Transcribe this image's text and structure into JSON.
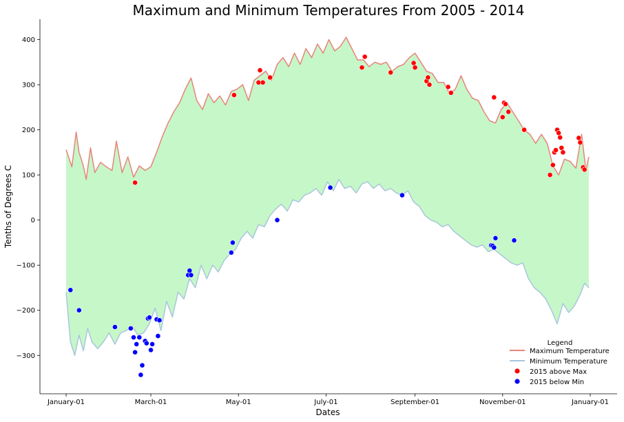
{
  "chart_data": {
    "type": "line",
    "title": "Maximum and Minimum Temperatures From 2005 - 2014",
    "xlabel": "Dates",
    "ylabel": "Tenths of Degrees C",
    "x_range": [
      "2015-01-01",
      "2016-01-01"
    ],
    "ylim": [
      -385,
      445
    ],
    "x_ticks": [
      {
        "date": "2015-01-01",
        "label": "January-01"
      },
      {
        "date": "2015-03-01",
        "label": "March-01"
      },
      {
        "date": "2015-05-01",
        "label": "May-01"
      },
      {
        "date": "2015-07-01",
        "label": "July-01"
      },
      {
        "date": "2015-09-01",
        "label": "September-01"
      },
      {
        "date": "2015-11-01",
        "label": "November-01"
      },
      {
        "date": "2016-01-01",
        "label": "January-01"
      }
    ],
    "y_ticks": [
      -300,
      -200,
      -100,
      0,
      100,
      200,
      300,
      400
    ],
    "grid": false,
    "fill_between_color": "#c6f7c8",
    "legend": {
      "title": "Legend",
      "position": "bottom-right",
      "entries": [
        {
          "label": "Maximum Temperature",
          "marker": "line",
          "color": "#e8837a"
        },
        {
          "label": "Minimum Temperature",
          "marker": "line",
          "color": "#a9c6dc"
        },
        {
          "label": "2015 above Max",
          "marker": "dot",
          "color": "#ff0000"
        },
        {
          "label": "2015 below Min",
          "marker": "dot",
          "color": "#0000ff"
        }
      ]
    },
    "series": [
      {
        "name": "Maximum Temperature",
        "color": "#e8837a",
        "points": [
          [
            "2015-01-01",
            156
          ],
          [
            "2015-01-05",
            118
          ],
          [
            "2015-01-08",
            195
          ],
          [
            "2015-01-10",
            150
          ],
          [
            "2015-01-13",
            120
          ],
          [
            "2015-01-15",
            90
          ],
          [
            "2015-01-18",
            160
          ],
          [
            "2015-01-21",
            105
          ],
          [
            "2015-01-25",
            128
          ],
          [
            "2015-01-29",
            118
          ],
          [
            "2015-02-02",
            110
          ],
          [
            "2015-02-05",
            175
          ],
          [
            "2015-02-09",
            105
          ],
          [
            "2015-02-13",
            140
          ],
          [
            "2015-02-17",
            95
          ],
          [
            "2015-02-21",
            120
          ],
          [
            "2015-02-25",
            110
          ],
          [
            "2015-03-01",
            118
          ],
          [
            "2015-03-05",
            150
          ],
          [
            "2015-03-09",
            185
          ],
          [
            "2015-03-13",
            215
          ],
          [
            "2015-03-17",
            240
          ],
          [
            "2015-03-21",
            260
          ],
          [
            "2015-03-25",
            290
          ],
          [
            "2015-03-29",
            315
          ],
          [
            "2015-04-02",
            265
          ],
          [
            "2015-04-06",
            245
          ],
          [
            "2015-04-10",
            280
          ],
          [
            "2015-04-14",
            260
          ],
          [
            "2015-04-18",
            275
          ],
          [
            "2015-04-22",
            255
          ],
          [
            "2015-04-26",
            285
          ],
          [
            "2015-04-30",
            290
          ],
          [
            "2015-05-04",
            300
          ],
          [
            "2015-05-08",
            265
          ],
          [
            "2015-05-12",
            310
          ],
          [
            "2015-05-16",
            320
          ],
          [
            "2015-05-20",
            330
          ],
          [
            "2015-05-24",
            310
          ],
          [
            "2015-05-28",
            345
          ],
          [
            "2015-06-01",
            360
          ],
          [
            "2015-06-05",
            340
          ],
          [
            "2015-06-09",
            370
          ],
          [
            "2015-06-13",
            345
          ],
          [
            "2015-06-17",
            380
          ],
          [
            "2015-06-21",
            360
          ],
          [
            "2015-06-25",
            390
          ],
          [
            "2015-06-29",
            370
          ],
          [
            "2015-07-03",
            400
          ],
          [
            "2015-07-07",
            375
          ],
          [
            "2015-07-11",
            385
          ],
          [
            "2015-07-15",
            405
          ],
          [
            "2015-07-19",
            380
          ],
          [
            "2015-07-23",
            355
          ],
          [
            "2015-07-27",
            355
          ],
          [
            "2015-07-31",
            340
          ],
          [
            "2015-08-04",
            350
          ],
          [
            "2015-08-08",
            345
          ],
          [
            "2015-08-12",
            350
          ],
          [
            "2015-08-16",
            330
          ],
          [
            "2015-08-20",
            340
          ],
          [
            "2015-08-24",
            345
          ],
          [
            "2015-08-28",
            360
          ],
          [
            "2015-09-01",
            370
          ],
          [
            "2015-09-05",
            350
          ],
          [
            "2015-09-09",
            330
          ],
          [
            "2015-09-13",
            325
          ],
          [
            "2015-09-17",
            305
          ],
          [
            "2015-09-21",
            305
          ],
          [
            "2015-09-25",
            280
          ],
          [
            "2015-09-29",
            290
          ],
          [
            "2015-10-03",
            320
          ],
          [
            "2015-10-07",
            290
          ],
          [
            "2015-10-11",
            270
          ],
          [
            "2015-10-15",
            265
          ],
          [
            "2015-10-19",
            240
          ],
          [
            "2015-10-23",
            220
          ],
          [
            "2015-10-27",
            215
          ],
          [
            "2015-10-31",
            245
          ],
          [
            "2015-11-04",
            260
          ],
          [
            "2015-11-08",
            240
          ],
          [
            "2015-11-12",
            220
          ],
          [
            "2015-11-16",
            200
          ],
          [
            "2015-11-20",
            190
          ],
          [
            "2015-11-24",
            170
          ],
          [
            "2015-11-28",
            190
          ],
          [
            "2015-12-02",
            170
          ],
          [
            "2015-12-06",
            120
          ],
          [
            "2015-12-10",
            100
          ],
          [
            "2015-12-14",
            135
          ],
          [
            "2015-12-18",
            130
          ],
          [
            "2015-12-22",
            115
          ],
          [
            "2015-12-26",
            190
          ],
          [
            "2015-12-29",
            110
          ],
          [
            "2015-12-31",
            140
          ]
        ]
      },
      {
        "name": "Minimum Temperature",
        "color": "#a9c6dc",
        "points": [
          [
            "2015-01-01",
            -160
          ],
          [
            "2015-01-04",
            -270
          ],
          [
            "2015-01-07",
            -300
          ],
          [
            "2015-01-10",
            -255
          ],
          [
            "2015-01-13",
            -290
          ],
          [
            "2015-01-16",
            -240
          ],
          [
            "2015-01-19",
            -270
          ],
          [
            "2015-01-23",
            -285
          ],
          [
            "2015-01-27",
            -270
          ],
          [
            "2015-01-31",
            -250
          ],
          [
            "2015-02-04",
            -275
          ],
          [
            "2015-02-08",
            -250
          ],
          [
            "2015-02-12",
            -245
          ],
          [
            "2015-02-16",
            -235
          ],
          [
            "2015-02-20",
            -255
          ],
          [
            "2015-02-24",
            -250
          ],
          [
            "2015-02-28",
            -230
          ],
          [
            "2015-03-04",
            -195
          ],
          [
            "2015-03-08",
            -245
          ],
          [
            "2015-03-12",
            -180
          ],
          [
            "2015-03-16",
            -215
          ],
          [
            "2015-03-20",
            -160
          ],
          [
            "2015-03-24",
            -175
          ],
          [
            "2015-03-28",
            -130
          ],
          [
            "2015-04-01",
            -150
          ],
          [
            "2015-04-05",
            -100
          ],
          [
            "2015-04-09",
            -130
          ],
          [
            "2015-04-13",
            -100
          ],
          [
            "2015-04-17",
            -115
          ],
          [
            "2015-04-21",
            -90
          ],
          [
            "2015-04-25",
            -75
          ],
          [
            "2015-04-29",
            -65
          ],
          [
            "2015-05-03",
            -40
          ],
          [
            "2015-05-07",
            -25
          ],
          [
            "2015-05-11",
            -40
          ],
          [
            "2015-05-15",
            -10
          ],
          [
            "2015-05-19",
            -15
          ],
          [
            "2015-05-23",
            10
          ],
          [
            "2015-05-27",
            25
          ],
          [
            "2015-05-31",
            35
          ],
          [
            "2015-06-04",
            20
          ],
          [
            "2015-06-08",
            45
          ],
          [
            "2015-06-12",
            40
          ],
          [
            "2015-06-16",
            55
          ],
          [
            "2015-06-20",
            60
          ],
          [
            "2015-06-24",
            70
          ],
          [
            "2015-06-28",
            55
          ],
          [
            "2015-07-02",
            85
          ],
          [
            "2015-07-06",
            65
          ],
          [
            "2015-07-10",
            90
          ],
          [
            "2015-07-14",
            70
          ],
          [
            "2015-07-18",
            75
          ],
          [
            "2015-07-22",
            60
          ],
          [
            "2015-07-26",
            80
          ],
          [
            "2015-07-30",
            85
          ],
          [
            "2015-08-03",
            70
          ],
          [
            "2015-08-07",
            80
          ],
          [
            "2015-08-11",
            65
          ],
          [
            "2015-08-15",
            70
          ],
          [
            "2015-08-19",
            60
          ],
          [
            "2015-08-23",
            55
          ],
          [
            "2015-08-27",
            65
          ],
          [
            "2015-08-31",
            40
          ],
          [
            "2015-09-04",
            30
          ],
          [
            "2015-09-08",
            10
          ],
          [
            "2015-09-12",
            0
          ],
          [
            "2015-09-16",
            -5
          ],
          [
            "2015-09-20",
            -15
          ],
          [
            "2015-09-24",
            -10
          ],
          [
            "2015-09-28",
            -25
          ],
          [
            "2015-10-02",
            -35
          ],
          [
            "2015-10-06",
            -45
          ],
          [
            "2015-10-10",
            -55
          ],
          [
            "2015-10-14",
            -60
          ],
          [
            "2015-10-18",
            -55
          ],
          [
            "2015-10-22",
            -70
          ],
          [
            "2015-10-26",
            -65
          ],
          [
            "2015-10-30",
            -75
          ],
          [
            "2015-11-03",
            -85
          ],
          [
            "2015-11-07",
            -95
          ],
          [
            "2015-11-11",
            -100
          ],
          [
            "2015-11-15",
            -95
          ],
          [
            "2015-11-19",
            -130
          ],
          [
            "2015-11-23",
            -150
          ],
          [
            "2015-11-27",
            -160
          ],
          [
            "2015-12-01",
            -175
          ],
          [
            "2015-12-05",
            -200
          ],
          [
            "2015-12-09",
            -230
          ],
          [
            "2015-12-13",
            -185
          ],
          [
            "2015-12-17",
            -205
          ],
          [
            "2015-12-21",
            -190
          ],
          [
            "2015-12-25",
            -165
          ],
          [
            "2015-12-28",
            -140
          ],
          [
            "2015-12-31",
            -150
          ]
        ]
      }
    ],
    "scatter": [
      {
        "name": "2015 above Max",
        "color": "#ff0000",
        "points": [
          [
            "2015-02-18",
            83
          ],
          [
            "2015-04-28",
            277
          ],
          [
            "2015-05-15",
            305
          ],
          [
            "2015-05-16",
            332
          ],
          [
            "2015-05-18",
            305
          ],
          [
            "2015-05-23",
            316
          ],
          [
            "2015-07-26",
            338
          ],
          [
            "2015-07-28",
            362
          ],
          [
            "2015-08-15",
            327
          ],
          [
            "2015-08-31",
            348
          ],
          [
            "2015-09-01",
            338
          ],
          [
            "2015-09-09",
            308
          ],
          [
            "2015-09-10",
            316
          ],
          [
            "2015-09-11",
            300
          ],
          [
            "2015-09-24",
            295
          ],
          [
            "2015-09-26",
            282
          ],
          [
            "2015-10-26",
            272
          ],
          [
            "2015-11-01",
            228
          ],
          [
            "2015-11-02",
            260
          ],
          [
            "2015-11-03",
            257
          ],
          [
            "2015-11-05",
            240
          ],
          [
            "2015-11-16",
            200
          ],
          [
            "2015-12-04",
            100
          ],
          [
            "2015-12-06",
            122
          ],
          [
            "2015-12-07",
            150
          ],
          [
            "2015-12-08",
            155
          ],
          [
            "2015-12-09",
            200
          ],
          [
            "2015-12-10",
            193
          ],
          [
            "2015-12-11",
            183
          ],
          [
            "2015-12-12",
            160
          ],
          [
            "2015-12-13",
            150
          ],
          [
            "2015-12-24",
            182
          ],
          [
            "2015-12-25",
            172
          ],
          [
            "2015-12-27",
            117
          ],
          [
            "2015-12-28",
            112
          ]
        ]
      },
      {
        "name": "2015 below Min",
        "color": "#0000ff",
        "points": [
          [
            "2015-01-04",
            -155
          ],
          [
            "2015-01-10",
            -200
          ],
          [
            "2015-02-04",
            -237
          ],
          [
            "2015-02-15",
            -240
          ],
          [
            "2015-02-17",
            -260
          ],
          [
            "2015-02-18",
            -293
          ],
          [
            "2015-02-19",
            -275
          ],
          [
            "2015-02-21",
            -260
          ],
          [
            "2015-02-22",
            -343
          ],
          [
            "2015-02-23",
            -322
          ],
          [
            "2015-02-25",
            -268
          ],
          [
            "2015-02-26",
            -273
          ],
          [
            "2015-02-27",
            -218
          ],
          [
            "2015-02-28",
            -216
          ],
          [
            "2015-03-01",
            -288
          ],
          [
            "2015-03-02",
            -275
          ],
          [
            "2015-03-05",
            -220
          ],
          [
            "2015-03-06",
            -257
          ],
          [
            "2015-03-07",
            -222
          ],
          [
            "2015-03-27",
            -122
          ],
          [
            "2015-03-28",
            -112
          ],
          [
            "2015-03-29",
            -122
          ],
          [
            "2015-04-27",
            -50
          ],
          [
            "2015-04-26",
            -72
          ],
          [
            "2015-05-28",
            0
          ],
          [
            "2015-07-04",
            72
          ],
          [
            "2015-08-23",
            55
          ],
          [
            "2015-10-24",
            -56
          ],
          [
            "2015-10-25",
            -57
          ],
          [
            "2015-10-26",
            -61
          ],
          [
            "2015-10-27",
            -40
          ],
          [
            "2015-11-09",
            -45
          ]
        ]
      }
    ]
  }
}
